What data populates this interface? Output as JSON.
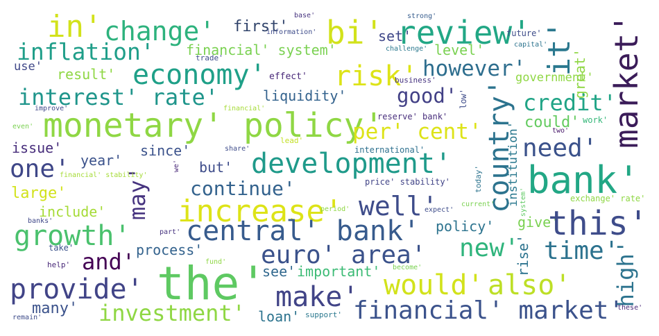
{
  "words": {
    "w1": {
      "text": "in'",
      "color": "#d2e21b"
    },
    "w2": {
      "text": "change'",
      "color": "#2db27d"
    },
    "w3": {
      "text": "first'",
      "color": "#31446b"
    },
    "w4": {
      "text": "bi'",
      "color": "#d2e21b"
    },
    "w5": {
      "text": "review'",
      "color": "#22a785"
    },
    "w6": {
      "text": "it'",
      "color": "#2a788e"
    },
    "w7": {
      "text": "market'",
      "color": "#3b1c59"
    },
    "w8": {
      "text": "inflation'",
      "color": "#1f9e89"
    },
    "w9": {
      "text": "financial' system'",
      "color": "#7ad151"
    },
    "w10": {
      "text": "set'",
      "color": "#3f4788"
    },
    "w11": {
      "text": "level'",
      "color": "#7ad151"
    },
    "w12": {
      "text": "use'",
      "color": "#3f4788"
    },
    "w13": {
      "text": "trade'",
      "color": "#3e4c8a"
    },
    "w14": {
      "text": "result'",
      "color": "#8fd744"
    },
    "w15": {
      "text": "economy'",
      "color": "#1fa088"
    },
    "w16": {
      "text": "effect'",
      "color": "#482878"
    },
    "w17": {
      "text": "risk'",
      "color": "#dde318"
    },
    "w18": {
      "text": "however'",
      "color": "#2e6e8e"
    },
    "w19": {
      "text": "great'",
      "color": "#8fd744"
    },
    "w20": {
      "text": "government'",
      "color": "#8fd744"
    },
    "w21": {
      "text": "interest' rate'",
      "color": "#1f958b"
    },
    "w22": {
      "text": "liquidity'",
      "color": "#33628d"
    },
    "w23": {
      "text": "good'",
      "color": "#424086"
    },
    "w24": {
      "text": "country'",
      "color": "#2c738e"
    },
    "w25": {
      "text": "credit'",
      "color": "#20a486"
    },
    "w26": {
      "text": "monetary' policy'",
      "color": "#8fd744"
    },
    "w27": {
      "text": "per' cent'",
      "color": "#dde318"
    },
    "w28": {
      "text": "could'",
      "color": "#63cb5f"
    },
    "w29": {
      "text": "need'",
      "color": "#3b528b"
    },
    "w30": {
      "text": "issue'",
      "color": "#472d7b"
    },
    "w31": {
      "text": "since'",
      "color": "#3b528b"
    },
    "w32": {
      "text": "year'",
      "color": "#3b528b"
    },
    "w33": {
      "text": "development'",
      "color": "#1f9a8a"
    },
    "w34": {
      "text": "institution'",
      "color": "#2a788e"
    },
    "w35": {
      "text": "one'",
      "color": "#3f4788"
    },
    "w36": {
      "text": "may'",
      "color": "#46337f"
    },
    "w37": {
      "text": "but'",
      "color": "#3e4c8a"
    },
    "w38": {
      "text": "bank'",
      "color": "#22a785"
    },
    "w39": {
      "text": "continue'",
      "color": "#33628d"
    },
    "w40": {
      "text": "large'",
      "color": "#d2e21b"
    },
    "w41": {
      "text": "increase'",
      "color": "#dde318"
    },
    "w42": {
      "text": "well'",
      "color": "#3e4c8a"
    },
    "w43": {
      "text": "include'",
      "color": "#a5db36"
    },
    "w44": {
      "text": "growth'",
      "color": "#4ac16d"
    },
    "w45": {
      "text": "central' bank'",
      "color": "#375b8d"
    },
    "w46": {
      "text": "this'",
      "color": "#3e4c8a"
    },
    "w47": {
      "text": "policy'",
      "color": "#2c738e"
    },
    "w48": {
      "text": "give'",
      "color": "#7ad151"
    },
    "w49": {
      "text": "rise'",
      "color": "#2c738e"
    },
    "w50": {
      "text": "new'",
      "color": "#2fb47c"
    },
    "w51": {
      "text": "time'",
      "color": "#2c728e"
    },
    "w52": {
      "text": "process'",
      "color": "#33628d"
    },
    "w53": {
      "text": "and'",
      "color": "#440154"
    },
    "w54": {
      "text": "euro' area'",
      "color": "#3b528b"
    },
    "w55": {
      "text": "high'",
      "color": "#2c738e"
    },
    "w56": {
      "text": "the'",
      "color": "#5ec962"
    },
    "w57": {
      "text": "see'",
      "color": "#31688e"
    },
    "w58": {
      "text": "important'",
      "color": "#3cbb75"
    },
    "w59": {
      "text": "would'",
      "color": "#d2e21b"
    },
    "w60": {
      "text": "also'",
      "color": "#bddf26"
    },
    "w61": {
      "text": "provide'",
      "color": "#414487"
    },
    "w62": {
      "text": "many'",
      "color": "#3b528b"
    },
    "w63": {
      "text": "make'",
      "color": "#414487"
    },
    "w64": {
      "text": "investment'",
      "color": "#8fd744"
    },
    "w65": {
      "text": "loan'",
      "color": "#2c738e"
    },
    "w66": {
      "text": "financial' market'",
      "color": "#3b528b"
    },
    "w67": {
      "text": "base'",
      "color": "#46337f"
    },
    "w68": {
      "text": "strong'",
      "color": "#365c8d"
    },
    "w69": {
      "text": "information'",
      "color": "#3e4c8a"
    },
    "w70": {
      "text": "future'",
      "color": "#3e4c8a"
    },
    "w71": {
      "text": "capital'",
      "color": "#2c738e"
    },
    "w72": {
      "text": "challenge'",
      "color": "#2a788e"
    },
    "w73": {
      "text": "business'",
      "color": "#46337f"
    },
    "w74": {
      "text": "low'",
      "color": "#3e4c8a"
    },
    "w75": {
      "text": "improve'",
      "color": "#3f4788"
    },
    "w76": {
      "text": "financial'",
      "color": "#a5db36"
    },
    "w77": {
      "text": "reserve' bank'",
      "color": "#472d7b"
    },
    "w78": {
      "text": "two'",
      "color": "#48186a"
    },
    "w79": {
      "text": "work'",
      "color": "#35b779"
    },
    "w80": {
      "text": "even'",
      "color": "#7ad151"
    },
    "w81": {
      "text": "lead'",
      "color": "#c2df23"
    },
    "w82": {
      "text": "share'",
      "color": "#3e4c8a"
    },
    "w83": {
      "text": "international'",
      "color": "#2d708e"
    },
    "w84": {
      "text": "we'",
      "color": "#482878"
    },
    "w85": {
      "text": "financial' stability'",
      "color": "#a5db36"
    },
    "w86": {
      "text": "today'",
      "color": "#2c738e"
    },
    "w87": {
      "text": "price' stability'",
      "color": "#414487"
    },
    "w88": {
      "text": "system'",
      "color": "#5ec962"
    },
    "w89": {
      "text": "period'",
      "color": "#8fd744"
    },
    "w90": {
      "text": "expect'",
      "color": "#3e4c8a"
    },
    "w91": {
      "text": "current'",
      "color": "#7ad151"
    },
    "w92": {
      "text": "exchange' rate'",
      "color": "#8fd744"
    },
    "w93": {
      "text": "banks'",
      "color": "#3f4788"
    },
    "w94": {
      "text": "part'",
      "color": "#46337f"
    },
    "w95": {
      "text": "take'",
      "color": "#3b528b"
    },
    "w96": {
      "text": "fund'",
      "color": "#8fd744"
    },
    "w97": {
      "text": "help'",
      "color": "#482878"
    },
    "w98": {
      "text": "become'",
      "color": "#7ad151"
    },
    "w99": {
      "text": "these'",
      "color": "#482878"
    },
    "w100": {
      "text": "remain'",
      "color": "#3e4c8a"
    },
    "w101": {
      "text": "support'",
      "color": "#2a788e"
    }
  }
}
